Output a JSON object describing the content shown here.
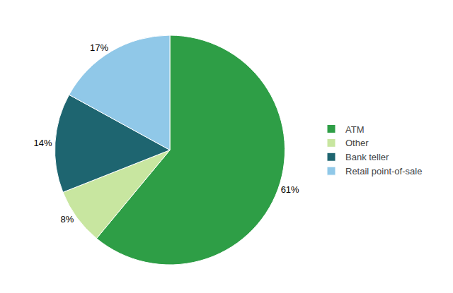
{
  "chart_data": {
    "type": "pie",
    "categories": [
      "ATM",
      "Other",
      "Bank teller",
      "Retail point-of-sale"
    ],
    "values": [
      61,
      8,
      14,
      17
    ],
    "value_labels": [
      "61%",
      "8%",
      "14%",
      "17%"
    ],
    "colors": [
      "#2e9e46",
      "#c8e6a0",
      "#1e6570",
      "#90c8e8"
    ],
    "data_labels": true,
    "legend": "right"
  }
}
